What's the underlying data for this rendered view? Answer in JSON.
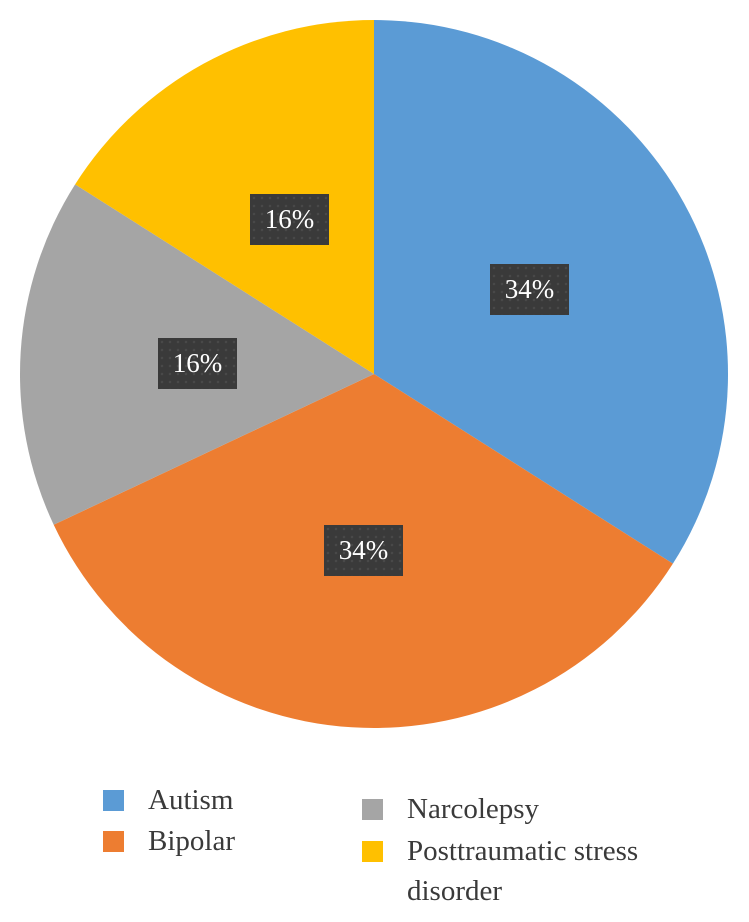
{
  "chart_data": {
    "type": "pie",
    "title": "",
    "start_angle_deg": 0,
    "direction": "clockwise",
    "categories": [
      "Autism",
      "Bipolar",
      "Narcolepsy",
      "Posttraumatic stress disorder"
    ],
    "values": [
      34,
      34,
      16,
      16
    ],
    "unit": "%",
    "colors": [
      "#5b9bd5",
      "#ed7d31",
      "#a5a5a5",
      "#ffc000"
    ],
    "data_labels": [
      "34%",
      "34%",
      "16%",
      "16%"
    ],
    "legend_position": "bottom"
  },
  "labels": {
    "autism": "34%",
    "bipolar": "34%",
    "narcolepsy": "16%",
    "ptsd": "16%"
  },
  "legend": {
    "autism": "Autism",
    "bipolar": "Bipolar",
    "narcolepsy": "Narcolepsy",
    "ptsd": "Posttraumatic stress disorder"
  }
}
